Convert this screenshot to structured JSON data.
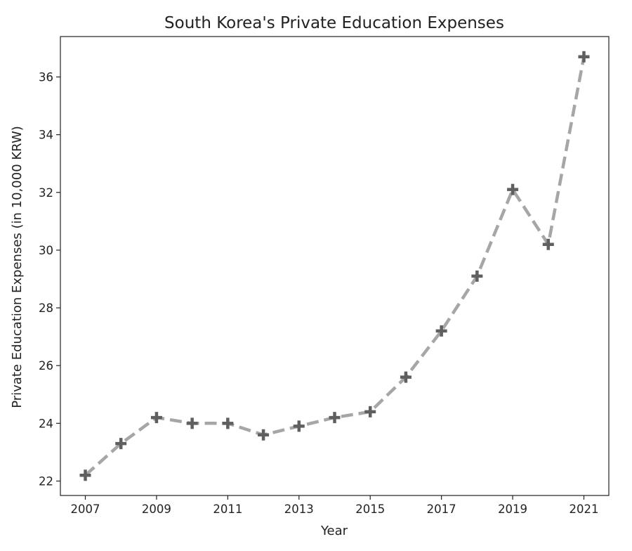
{
  "chart_data": {
    "type": "line",
    "title": "South Korea's Private Education Expenses",
    "xlabel": "Year",
    "ylabel": "Private Education Expenses (in 10,000 KRW)",
    "x": [
      2007,
      2008,
      2009,
      2010,
      2011,
      2012,
      2013,
      2014,
      2015,
      2016,
      2017,
      2018,
      2019,
      2020,
      2021
    ],
    "series": [
      {
        "values": [
          22.2,
          23.3,
          24.2,
          24.0,
          24.0,
          23.6,
          23.9,
          24.2,
          24.4,
          25.6,
          27.2,
          29.1,
          32.1,
          30.2,
          36.7
        ],
        "line_color": "#a6a6a6",
        "marker_color": "#5f5f5f",
        "line_style": "dashed",
        "marker": "plus"
      }
    ],
    "xticks": [
      2007,
      2009,
      2011,
      2013,
      2015,
      2017,
      2019,
      2021
    ],
    "yticks": [
      22,
      24,
      26,
      28,
      30,
      32,
      34,
      36
    ],
    "xlim": [
      2006.3,
      2021.7
    ],
    "ylim": [
      21.5,
      37.4
    ],
    "grid": false,
    "legend": false
  }
}
